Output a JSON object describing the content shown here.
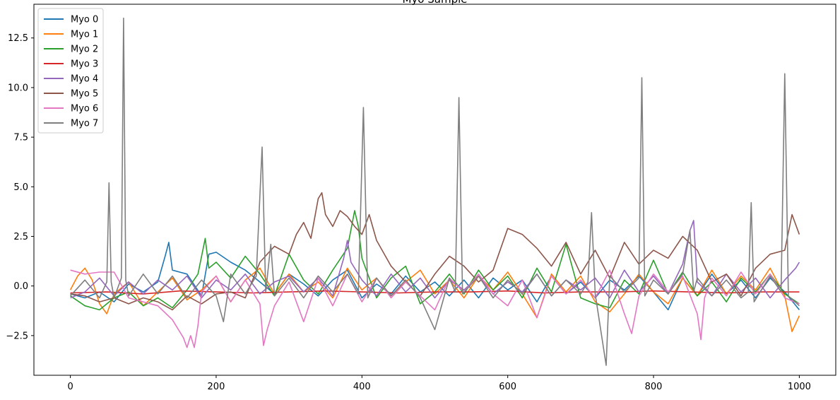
{
  "chart_data": {
    "type": "line",
    "title": "Myo Sample",
    "xlabel": "",
    "ylabel": "",
    "xlim": [
      -50,
      1050
    ],
    "ylim": [
      -4.5,
      14.2
    ],
    "xticks": [
      0,
      200,
      400,
      600,
      800,
      1000
    ],
    "xtick_labels": [
      "0",
      "200",
      "400",
      "600",
      "800",
      "1000"
    ],
    "yticks": [
      -2.5,
      0.0,
      2.5,
      5.0,
      7.5,
      10.0,
      12.5
    ],
    "ytick_labels": [
      "−2.5",
      "0.0",
      "2.5",
      "5.0",
      "7.5",
      "10.0",
      "12.5"
    ],
    "grid": false,
    "legend_position": "top-left",
    "series": [
      {
        "name": "Myo 0",
        "color": "#1f77b4",
        "x": [
          0,
          20,
          40,
          60,
          80,
          100,
          120,
          130,
          135,
          140,
          160,
          180,
          190,
          200,
          220,
          240,
          260,
          280,
          300,
          320,
          340,
          360,
          380,
          400,
          420,
          440,
          460,
          480,
          500,
          520,
          540,
          560,
          580,
          600,
          620,
          640,
          660,
          680,
          700,
          720,
          740,
          760,
          780,
          800,
          820,
          840,
          860,
          880,
          900,
          920,
          940,
          960,
          980,
          1000
        ],
        "y": [
          -0.4,
          -0.6,
          -0.3,
          -0.8,
          0.1,
          -0.3,
          0.2,
          1.5,
          2.2,
          0.8,
          0.6,
          -0.5,
          1.6,
          1.7,
          1.2,
          0.8,
          0.2,
          -0.4,
          0.6,
          0.1,
          -0.5,
          0.3,
          0.8,
          -0.6,
          0.1,
          -0.4,
          0.5,
          -0.3,
          0.2,
          -0.5,
          0.3,
          -0.6,
          0.4,
          -0.2,
          0.3,
          -0.8,
          0.5,
          -0.4,
          0.2,
          -0.6,
          0.3,
          -0.2,
          0.5,
          -0.3,
          -1.2,
          0.4,
          -0.5,
          0.6,
          -0.4,
          0.3,
          -0.6,
          0.4,
          -0.3,
          -1.2
        ]
      },
      {
        "name": "Myo 1",
        "color": "#ff7f0e",
        "x": [
          0,
          10,
          20,
          30,
          40,
          50,
          60,
          80,
          100,
          120,
          140,
          160,
          180,
          200,
          220,
          240,
          260,
          280,
          300,
          320,
          340,
          360,
          380,
          400,
          420,
          440,
          460,
          480,
          500,
          520,
          540,
          560,
          580,
          600,
          620,
          640,
          660,
          680,
          700,
          720,
          740,
          760,
          780,
          800,
          820,
          840,
          860,
          880,
          900,
          920,
          940,
          960,
          980,
          990,
          1000
        ],
        "y": [
          -0.2,
          0.5,
          0.9,
          0.3,
          -0.9,
          -1.4,
          -0.4,
          0.2,
          -1.0,
          -0.3,
          0.4,
          -0.7,
          -0.2,
          0.5,
          -0.8,
          0.3,
          0.9,
          -0.4,
          0.6,
          -0.3,
          0.2,
          -0.6,
          0.9,
          -0.2,
          0.4,
          -0.5,
          0.2,
          0.8,
          -0.4,
          0.3,
          -0.6,
          0.5,
          -0.2,
          0.7,
          -0.4,
          -1.6,
          0.6,
          -0.3,
          0.5,
          -0.8,
          -1.3,
          -0.4,
          0.6,
          -0.3,
          -0.9,
          0.4,
          -0.5,
          0.8,
          -0.4,
          0.5,
          -0.2,
          0.9,
          -0.5,
          -2.3,
          -1.5
        ]
      },
      {
        "name": "Myo 2",
        "color": "#2ca02c",
        "x": [
          0,
          20,
          40,
          60,
          80,
          100,
          120,
          140,
          160,
          175,
          185,
          190,
          200,
          220,
          240,
          260,
          280,
          300,
          320,
          340,
          360,
          380,
          390,
          395,
          400,
          420,
          440,
          460,
          480,
          500,
          520,
          540,
          560,
          580,
          600,
          620,
          640,
          660,
          680,
          700,
          720,
          740,
          760,
          780,
          800,
          820,
          840,
          860,
          880,
          900,
          920,
          940,
          960,
          980,
          1000
        ],
        "y": [
          -0.5,
          -1.0,
          -1.2,
          -0.6,
          -0.3,
          -1.0,
          -0.6,
          -1.1,
          -0.2,
          0.6,
          2.4,
          0.9,
          1.2,
          0.4,
          1.5,
          0.6,
          -0.5,
          1.6,
          0.3,
          -0.4,
          0.8,
          1.9,
          3.8,
          3.0,
          1.4,
          -0.6,
          0.4,
          1.0,
          -0.9,
          -0.3,
          0.6,
          -0.4,
          0.8,
          -0.2,
          0.5,
          -0.6,
          0.9,
          -0.3,
          2.1,
          -0.6,
          -0.9,
          -1.1,
          0.3,
          -0.4,
          1.3,
          -0.4,
          0.7,
          -0.5,
          0.2,
          -0.8,
          0.4,
          -0.3,
          0.6,
          -0.4,
          -0.9
        ]
      },
      {
        "name": "Myo 3",
        "color": "#d62728",
        "x": [
          0,
          50,
          100,
          150,
          200,
          250,
          300,
          350,
          400,
          450,
          500,
          550,
          600,
          650,
          700,
          750,
          800,
          850,
          900,
          950,
          1000
        ],
        "y": [
          -0.35,
          -0.3,
          -0.4,
          -0.25,
          -0.3,
          -0.35,
          -0.3,
          -0.25,
          -0.3,
          -0.35,
          -0.3,
          -0.3,
          -0.25,
          -0.35,
          -0.3,
          -0.3,
          -0.25,
          -0.3,
          -0.35,
          -0.3,
          -0.3
        ]
      },
      {
        "name": "Myo 4",
        "color": "#9467bd",
        "x": [
          0,
          20,
          40,
          60,
          80,
          100,
          120,
          140,
          160,
          180,
          200,
          220,
          240,
          260,
          280,
          300,
          320,
          340,
          360,
          375,
          380,
          385,
          400,
          420,
          440,
          460,
          480,
          500,
          520,
          540,
          560,
          580,
          600,
          620,
          640,
          660,
          680,
          700,
          720,
          740,
          760,
          780,
          800,
          820,
          840,
          850,
          855,
          860,
          880,
          900,
          920,
          940,
          960,
          980,
          995,
          1000
        ],
        "y": [
          -0.6,
          -0.3,
          0.4,
          -0.5,
          0.2,
          -0.4,
          0.3,
          -0.2,
          0.5,
          -0.6,
          0.3,
          -0.2,
          0.6,
          -0.4,
          0.2,
          0.5,
          -0.3,
          0.4,
          -0.5,
          1.4,
          2.3,
          1.2,
          0.3,
          -0.5,
          0.6,
          -0.3,
          0.4,
          -0.6,
          0.3,
          -0.2,
          0.5,
          -0.4,
          0.2,
          -0.3,
          0.6,
          -0.5,
          0.3,
          -0.2,
          0.4,
          -0.6,
          0.8,
          -0.3,
          0.5,
          -0.4,
          1.1,
          2.8,
          3.3,
          0.2,
          -0.5,
          0.6,
          -0.3,
          0.4,
          -0.6,
          0.3,
          0.9,
          1.2
        ]
      },
      {
        "name": "Myo 5",
        "color": "#8c564b",
        "x": [
          0,
          20,
          40,
          60,
          80,
          100,
          120,
          140,
          160,
          180,
          200,
          220,
          240,
          260,
          280,
          300,
          310,
          320,
          330,
          340,
          345,
          350,
          360,
          370,
          380,
          390,
          400,
          410,
          420,
          440,
          460,
          480,
          500,
          520,
          540,
          560,
          580,
          600,
          620,
          640,
          660,
          680,
          700,
          720,
          740,
          760,
          780,
          800,
          820,
          840,
          860,
          880,
          900,
          920,
          940,
          960,
          980,
          990,
          1000
        ],
        "y": [
          -0.4,
          -0.5,
          -0.8,
          -0.6,
          -0.9,
          -0.6,
          -0.8,
          -1.2,
          -0.5,
          -0.9,
          -0.4,
          -0.3,
          -0.6,
          1.2,
          2.0,
          1.6,
          2.6,
          3.2,
          2.4,
          4.4,
          4.7,
          3.6,
          3.0,
          3.8,
          3.5,
          3.0,
          2.6,
          3.6,
          2.3,
          1.0,
          0.2,
          -0.5,
          0.6,
          1.5,
          1.0,
          0.2,
          0.8,
          2.9,
          2.6,
          1.9,
          1.0,
          2.2,
          0.6,
          1.8,
          0.4,
          2.2,
          1.1,
          1.8,
          1.4,
          2.5,
          1.8,
          0.2,
          0.6,
          -0.5,
          0.9,
          1.6,
          1.8,
          3.6,
          2.6
        ]
      },
      {
        "name": "Myo 6",
        "color": "#e377c2",
        "x": [
          0,
          20,
          40,
          60,
          80,
          100,
          120,
          140,
          155,
          160,
          165,
          170,
          175,
          180,
          200,
          220,
          240,
          260,
          265,
          270,
          280,
          300,
          320,
          340,
          360,
          380,
          400,
          420,
          440,
          460,
          480,
          500,
          520,
          540,
          560,
          580,
          600,
          620,
          640,
          660,
          680,
          700,
          720,
          740,
          760,
          770,
          780,
          800,
          820,
          840,
          860,
          865,
          870,
          880,
          900,
          920,
          940,
          960,
          980,
          1000
        ],
        "y": [
          0.8,
          0.6,
          0.7,
          0.7,
          -0.6,
          -0.8,
          -1.0,
          -1.7,
          -2.6,
          -3.1,
          -2.5,
          -3.1,
          -2.0,
          -0.3,
          0.5,
          -0.8,
          0.3,
          -0.9,
          -3.0,
          -2.2,
          -1.0,
          0.2,
          -1.8,
          0.4,
          -1.0,
          0.6,
          -0.8,
          0.4,
          -0.6,
          0.2,
          -0.5,
          -1.2,
          0.4,
          -0.3,
          0.6,
          -0.4,
          -1.0,
          0.3,
          -1.6,
          0.5,
          -0.4,
          0.3,
          -0.6,
          0.8,
          -1.4,
          -2.4,
          -0.5,
          0.6,
          -0.3,
          0.5,
          -1.4,
          -2.7,
          -0.6,
          0.4,
          -0.5,
          0.7,
          -0.4,
          0.6,
          -0.6,
          -0.9
        ]
      },
      {
        "name": "Myo 7",
        "color": "#7f7f7f",
        "x": [
          0,
          20,
          40,
          50,
          53,
          56,
          60,
          70,
          73,
          76,
          80,
          100,
          120,
          140,
          160,
          180,
          200,
          210,
          220,
          240,
          255,
          263,
          268,
          275,
          280,
          300,
          320,
          340,
          360,
          380,
          395,
          402,
          408,
          420,
          440,
          460,
          480,
          500,
          520,
          528,
          533,
          538,
          560,
          580,
          600,
          620,
          640,
          660,
          680,
          700,
          710,
          715,
          720,
          735,
          740,
          760,
          780,
          784,
          788,
          800,
          820,
          840,
          850,
          855,
          860,
          880,
          900,
          920,
          930,
          934,
          938,
          960,
          975,
          980,
          985,
          1000
        ],
        "y": [
          -0.5,
          0.3,
          -0.6,
          0.2,
          5.2,
          0.2,
          -0.6,
          0.4,
          13.5,
          0.3,
          -0.5,
          0.6,
          -0.4,
          0.5,
          -0.6,
          0.3,
          -0.5,
          -1.8,
          0.6,
          -0.4,
          0.5,
          7.0,
          -0.3,
          2.1,
          -0.5,
          0.4,
          -0.6,
          0.5,
          -0.3,
          0.6,
          -0.4,
          9.0,
          -0.6,
          0.4,
          -0.5,
          0.3,
          -0.6,
          -2.2,
          0.4,
          -0.3,
          9.5,
          -0.4,
          0.5,
          -0.6,
          0.3,
          -0.4,
          0.6,
          -0.5,
          0.3,
          -0.4,
          0.2,
          3.7,
          -0.4,
          -4.0,
          0.5,
          -0.3,
          0.4,
          10.5,
          -0.5,
          0.3,
          -0.4,
          0.6,
          2.8,
          -0.3,
          0.4,
          -0.5,
          0.3,
          -0.6,
          -0.3,
          4.2,
          -0.8,
          0.5,
          -0.3,
          10.7,
          -0.5,
          -1.0
        ]
      }
    ]
  }
}
